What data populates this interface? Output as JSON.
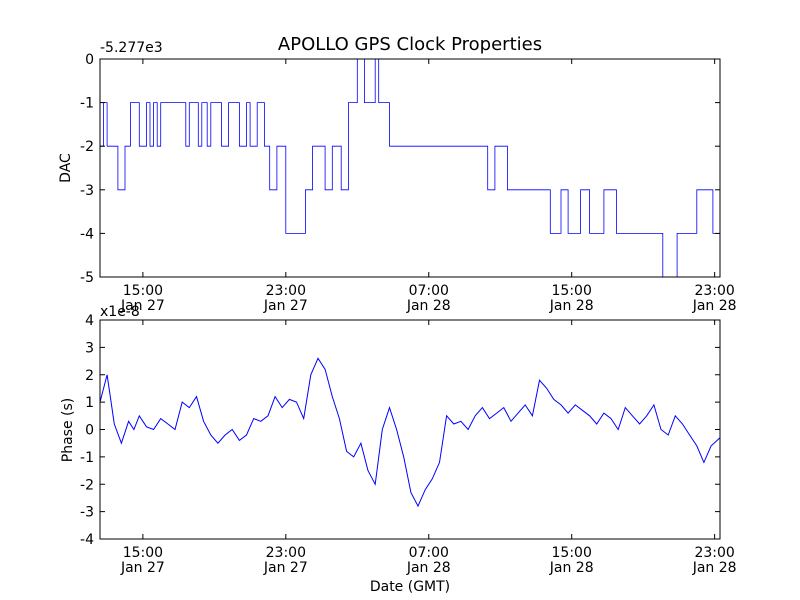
{
  "chart_data": [
    {
      "type": "line",
      "title": "APOLLO GPS Clock Properties",
      "ylabel": "DAC",
      "offset_text": "-5.277e3",
      "x_ticks": [
        {
          "value": 0,
          "time": "15:00",
          "date": "Jan 27"
        },
        {
          "value": 8,
          "time": "23:00",
          "date": "Jan 27"
        },
        {
          "value": 16,
          "time": "07:00",
          "date": "Jan 28"
        },
        {
          "value": 24,
          "time": "15:00",
          "date": "Jan 28"
        },
        {
          "value": 32,
          "time": "23:00",
          "date": "Jan 28"
        }
      ],
      "xlim": [
        -2.4,
        32.3
      ],
      "ylim": [
        -5,
        0
      ],
      "y_ticks": [
        0,
        -1,
        -2,
        -3,
        -4,
        -5
      ],
      "color": "#0000ff",
      "x": [
        -2.4,
        -2.2,
        -2.0,
        -1.4,
        -1.0,
        -0.7,
        -0.2,
        0.2,
        0.4,
        0.6,
        0.8,
        1.0,
        2.4,
        2.6,
        3.1,
        3.3,
        3.6,
        3.8,
        4.4,
        4.8,
        5.4,
        5.8,
        6.0,
        6.4,
        6.8,
        7.1,
        7.5,
        8.0,
        8.7,
        9.1,
        9.5,
        10.2,
        10.6,
        11.1,
        11.5,
        12.0,
        12.4,
        13.0,
        13.2,
        13.8,
        14.4,
        15.0,
        15.6,
        16.2,
        17.0,
        18.0,
        18.8,
        19.3,
        19.7,
        20.4,
        21.2,
        22.0,
        22.8,
        23.4,
        23.8,
        24.5,
        25.0,
        25.8,
        26.5,
        27.2,
        27.6,
        28.3,
        29.1,
        29.9,
        30.6,
        31.0,
        31.5,
        31.9,
        32.3
      ],
      "y": [
        -2,
        -1,
        -2,
        -3,
        -2,
        -1,
        -2,
        -1,
        -2,
        -1,
        -2,
        -1,
        -2,
        -1,
        -2,
        -1,
        -2,
        -1,
        -2,
        -1,
        -2,
        -1,
        -2,
        -1,
        -2,
        -3,
        -2,
        -4,
        -4,
        -3,
        -2,
        -3,
        -2,
        -3,
        -1,
        0,
        -1,
        0,
        -1,
        -2,
        -2,
        -2,
        -2,
        -2,
        -2,
        -2,
        -2,
        -3,
        -2,
        -3,
        -3,
        -3,
        -4,
        -3,
        -4,
        -3,
        -4,
        -3,
        -4,
        -4,
        -4,
        -4,
        -5,
        -4,
        -4,
        -3,
        -3,
        -4,
        -3
      ]
    },
    {
      "type": "line",
      "xlabel": "Date (GMT)",
      "ylabel": "Phase (s)",
      "offset_text": "x1e-8",
      "x_ticks": [
        {
          "value": 0,
          "time": "15:00",
          "date": "Jan 27"
        },
        {
          "value": 8,
          "time": "23:00",
          "date": "Jan 27"
        },
        {
          "value": 16,
          "time": "07:00",
          "date": "Jan 28"
        },
        {
          "value": 24,
          "time": "15:00",
          "date": "Jan 28"
        },
        {
          "value": 32,
          "time": "23:00",
          "date": "Jan 28"
        }
      ],
      "xlim": [
        -2.4,
        32.3
      ],
      "ylim": [
        -4,
        4
      ],
      "y_ticks": [
        4,
        3,
        2,
        1,
        0,
        -1,
        -2,
        -3,
        -4
      ],
      "color": "#0000ff",
      "x": [
        -2.4,
        -2.0,
        -1.6,
        -1.2,
        -0.8,
        -0.5,
        -0.2,
        0.2,
        0.6,
        1.0,
        1.4,
        1.8,
        2.2,
        2.6,
        3.0,
        3.4,
        3.8,
        4.2,
        4.6,
        5.0,
        5.4,
        5.8,
        6.2,
        6.6,
        7.0,
        7.4,
        7.8,
        8.2,
        8.6,
        9.0,
        9.4,
        9.8,
        10.2,
        10.6,
        11.0,
        11.4,
        11.8,
        12.2,
        12.6,
        13.0,
        13.4,
        13.8,
        14.2,
        14.6,
        15.0,
        15.4,
        15.8,
        16.2,
        16.6,
        17.0,
        17.4,
        17.8,
        18.2,
        18.6,
        19.0,
        19.4,
        19.8,
        20.2,
        20.6,
        21.0,
        21.4,
        21.8,
        22.2,
        22.6,
        23.0,
        23.4,
        23.8,
        24.2,
        24.6,
        25.0,
        25.4,
        25.8,
        26.2,
        26.6,
        27.0,
        27.4,
        27.8,
        28.2,
        28.6,
        29.0,
        29.4,
        29.8,
        30.2,
        30.6,
        31.0,
        31.4,
        31.8,
        32.3
      ],
      "y": [
        1.0,
        2.0,
        0.2,
        -0.5,
        0.3,
        0.0,
        0.5,
        0.1,
        0.0,
        0.4,
        0.2,
        0.0,
        1.0,
        0.8,
        1.2,
        0.3,
        -0.2,
        -0.5,
        -0.2,
        0.0,
        -0.4,
        -0.2,
        0.4,
        0.3,
        0.5,
        1.2,
        0.8,
        1.1,
        1.0,
        0.4,
        2.0,
        2.6,
        2.2,
        1.2,
        0.4,
        -0.8,
        -1.0,
        -0.5,
        -1.5,
        -2.0,
        0.0,
        0.8,
        0.0,
        -1.0,
        -2.3,
        -2.8,
        -2.2,
        -1.8,
        -1.2,
        0.5,
        0.2,
        0.3,
        0.0,
        0.5,
        0.8,
        0.4,
        0.6,
        0.8,
        0.3,
        0.6,
        0.9,
        0.5,
        1.8,
        1.5,
        1.1,
        0.9,
        0.6,
        0.9,
        0.7,
        0.5,
        0.2,
        0.6,
        0.4,
        0.0,
        0.8,
        0.5,
        0.2,
        0.5,
        0.9,
        0.0,
        -0.2,
        0.5,
        0.2,
        -0.2,
        -0.6,
        -1.2,
        -0.6,
        -0.3
      ]
    }
  ]
}
